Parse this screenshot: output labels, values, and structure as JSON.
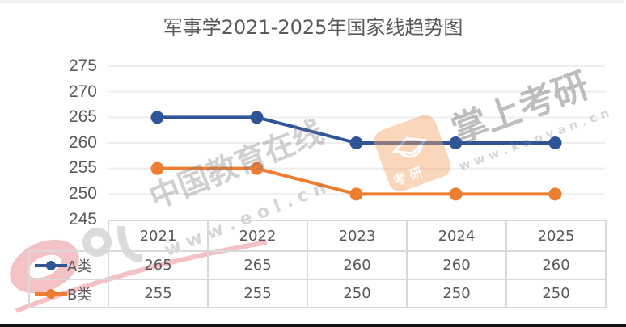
{
  "title": "军事学2021-2025年国家线趋势图",
  "chart_data": {
    "type": "line",
    "title": "军事学2021-2025年国家线趋势图",
    "categories": [
      "2021",
      "2022",
      "2023",
      "2024",
      "2025"
    ],
    "series": [
      {
        "name": "A类",
        "values": [
          265,
          265,
          260,
          260,
          260
        ],
        "color": "#2f5597"
      },
      {
        "name": "B类",
        "values": [
          255,
          255,
          250,
          250,
          250
        ],
        "color": "#ed7d31"
      }
    ],
    "xlabel": "",
    "ylabel": "",
    "ylim": [
      245,
      275
    ],
    "yticks": [
      "275",
      "270",
      "265",
      "260",
      "255",
      "250",
      "245"
    ],
    "grid": true,
    "legend_position": "data-table",
    "data_table": true
  },
  "table": {
    "years": [
      "2021",
      "2022",
      "2023",
      "2024",
      "2025"
    ],
    "rows": [
      {
        "label": "A类",
        "values": [
          "265",
          "265",
          "260",
          "260",
          "260"
        ]
      },
      {
        "label": "B类",
        "values": [
          "255",
          "255",
          "250",
          "250",
          "250"
        ]
      }
    ]
  },
  "watermarks": {
    "eol_text": "中国教育在线",
    "eol_url": "w w w . e o l . c n",
    "kaoyan_text": "掌上考研",
    "kaoyan_url": "w w w . k a o y a n . c n",
    "kaoyan_badge": "考 研"
  },
  "colors": {
    "series_a": "#2f5597",
    "series_b": "#ed7d31",
    "grid": "#eeeeee",
    "text": "#595959"
  }
}
